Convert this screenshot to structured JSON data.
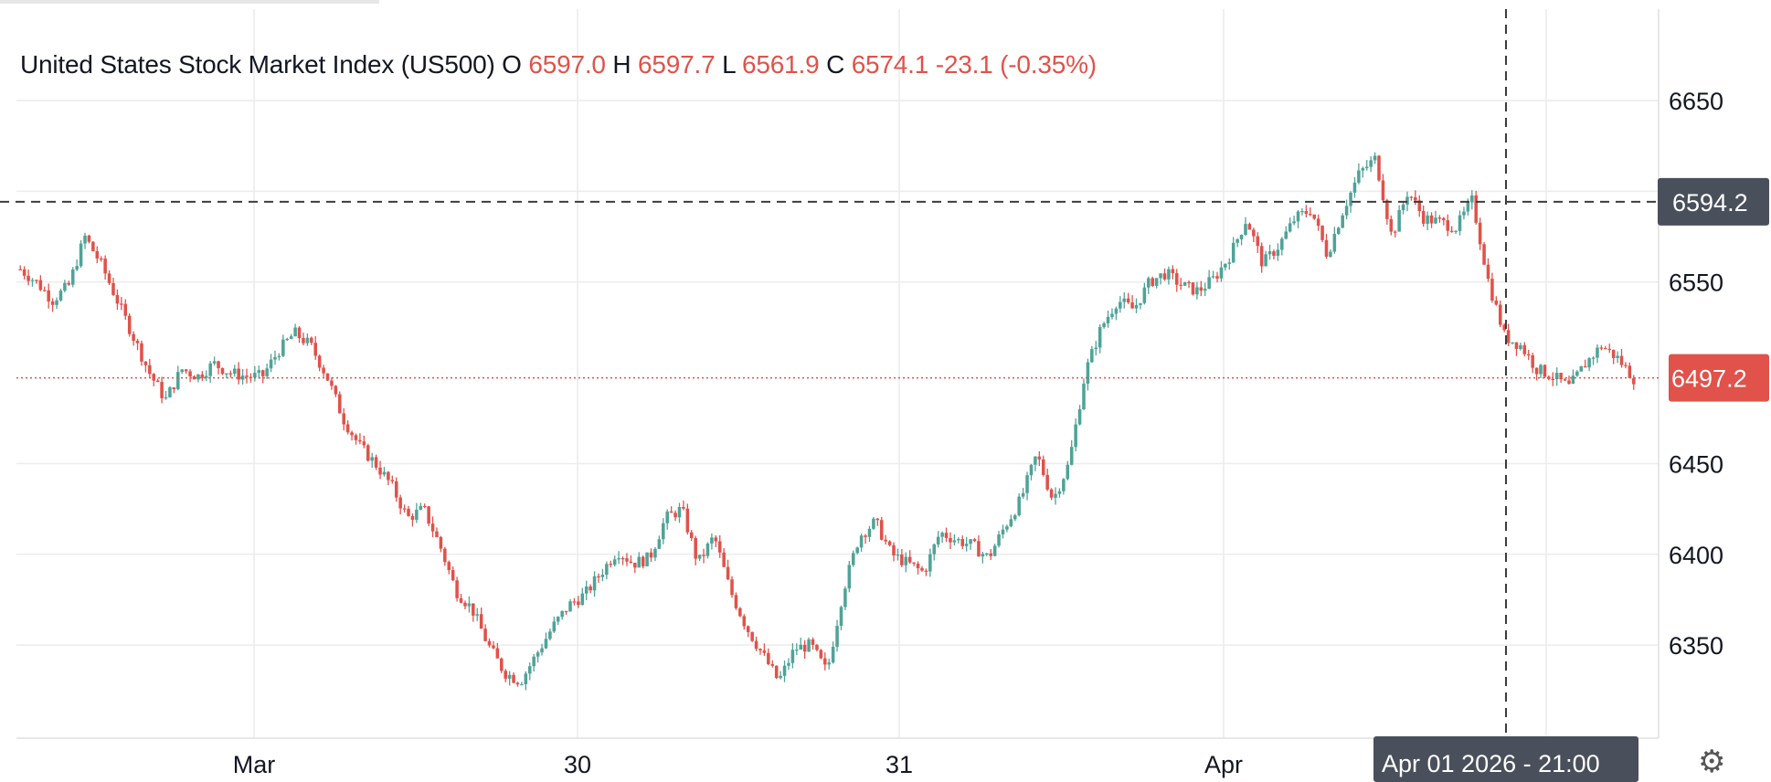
{
  "legend": {
    "name": "United States Stock Market Index (US500)",
    "o_label": "O",
    "o_value": "6597.0",
    "h_label": "H",
    "h_value": "6597.7",
    "l_label": "L",
    "l_value": "6561.9",
    "c_label": "C",
    "c_value": "6574.1",
    "change": "-23.1 (-0.35%)"
  },
  "crosshair": {
    "price_label": "6594.2",
    "time_label": "Apr 01 2026 - 21:00"
  },
  "last_price": {
    "label": "6497.2",
    "value": 6497.2
  },
  "colors": {
    "up": "#4fa397",
    "down": "#e0524a",
    "grid": "#ececec",
    "crosshair": "#3c3c3c",
    "label_bg": "#4a4f5c"
  },
  "chart_data": {
    "type": "candlestick",
    "ylim": [
      6312,
      6672
    ],
    "yticks": [
      6350,
      6400,
      6450,
      6550,
      6650
    ],
    "xticks": [
      "Mar",
      "30",
      "31",
      "Apr"
    ],
    "grid": true,
    "approx_close_path": [
      6557,
      6550,
      6540,
      6548,
      6575,
      6560,
      6540,
      6520,
      6500,
      6485,
      6502,
      6498,
      6505,
      6500,
      6498,
      6498,
      6512,
      6522,
      6515,
      6498,
      6475,
      6460,
      6450,
      6438,
      6420,
      6425,
      6405,
      6380,
      6370,
      6350,
      6335,
      6330,
      6345,
      6360,
      6372,
      6378,
      6390,
      6402,
      6395,
      6398,
      6420,
      6425,
      6395,
      6410,
      6380,
      6360,
      6345,
      6330,
      6348,
      6350,
      6335,
      6380,
      6410,
      6418,
      6400,
      6395,
      6390,
      6412,
      6408,
      6405,
      6398,
      6415,
      6430,
      6455,
      6430,
      6450,
      6500,
      6525,
      6540,
      6535,
      6550,
      6555,
      6548,
      6545,
      6552,
      6565,
      6585,
      6560,
      6570,
      6585,
      6590,
      6565,
      6590,
      6610,
      6618,
      6575,
      6600,
      6585,
      6583,
      6580,
      6595,
      6550,
      6520,
      6515,
      6502,
      6498,
      6492,
      6505,
      6515,
      6508,
      6497
    ]
  }
}
